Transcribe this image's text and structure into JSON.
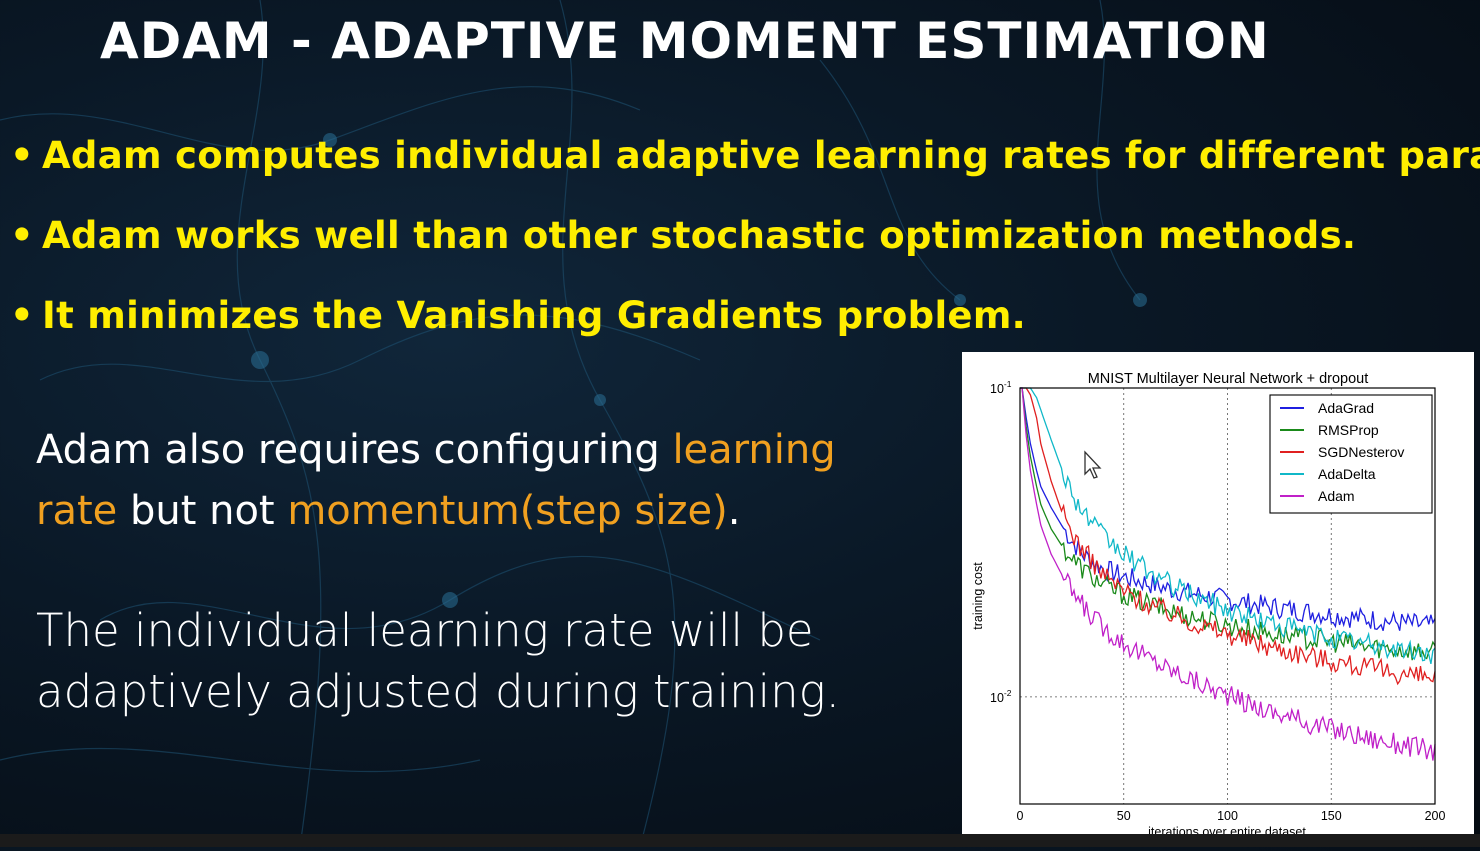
{
  "slide": {
    "title": "ADAM - ADAPTIVE MOMENT ESTIMATION",
    "bullets": [
      "Adam computes individual adaptive learning rates for different para",
      "Adam works well than other stochastic optimization methods.",
      "It minimizes the Vanishing Gradients problem."
    ],
    "bullet_glyph": "•",
    "paragraph1": {
      "t1": "Adam also requires configuring ",
      "h1": "learning rate",
      "t2": " but not ",
      "h2": "momentum(step size)",
      "t3": "."
    },
    "paragraph2": "The individual learning rate will be adaptively adjusted during training.",
    "colors": {
      "bullet_text": "#ffee00",
      "highlight": "#f0a020",
      "text": "#ffffff"
    }
  },
  "chart_data": {
    "type": "line",
    "title": "MNIST Multilayer Neural Network + dropout",
    "xlabel": "iterations over entire dataset",
    "ylabel": "training cost",
    "xlim": [
      0,
      200
    ],
    "ylim": [
      0.0045,
      0.1
    ],
    "yscale": "log",
    "x_ticks": [
      "0",
      "50",
      "100",
      "150",
      "200"
    ],
    "y_ticks": [
      {
        "base": "10",
        "exp": "-1"
      },
      {
        "base": "10",
        "exp": "-2"
      }
    ],
    "grid": true,
    "legend_position": "top-right",
    "x": [
      1,
      3,
      5,
      8,
      10,
      15,
      20,
      25,
      30,
      40,
      50,
      60,
      70,
      80,
      90,
      100,
      110,
      120,
      130,
      140,
      150,
      160,
      170,
      180,
      190,
      200
    ],
    "series": [
      {
        "name": "AdaGrad",
        "color": "#1f1fe0",
        "values": [
          0.1,
          0.08,
          0.066,
          0.054,
          0.048,
          0.041,
          0.036,
          0.032,
          0.029,
          0.026,
          0.0245,
          0.0235,
          0.0225,
          0.0218,
          0.0212,
          0.0206,
          0.0201,
          0.0196,
          0.0192,
          0.0188,
          0.0184,
          0.0181,
          0.0178,
          0.0175,
          0.0172,
          0.017
        ]
      },
      {
        "name": "RMSProp",
        "color": "#1a8a1a",
        "values": [
          0.1,
          0.075,
          0.06,
          0.048,
          0.042,
          0.035,
          0.031,
          0.028,
          0.026,
          0.023,
          0.0215,
          0.0202,
          0.0192,
          0.0184,
          0.0177,
          0.0171,
          0.0166,
          0.0161,
          0.0157,
          0.0154,
          0.0151,
          0.0148,
          0.0145,
          0.0143,
          0.0141,
          0.0139
        ]
      },
      {
        "name": "SGDNesterov",
        "color": "#e02020",
        "values": [
          0.1,
          0.1,
          0.095,
          0.08,
          0.066,
          0.05,
          0.04,
          0.034,
          0.03,
          0.025,
          0.022,
          0.0203,
          0.019,
          0.0178,
          0.0168,
          0.016,
          0.0153,
          0.0146,
          0.0141,
          0.0136,
          0.0131,
          0.0127,
          0.0123,
          0.012,
          0.0117,
          0.0115
        ]
      },
      {
        "name": "AdaDelta",
        "color": "#10b8c8",
        "values": [
          0.1,
          0.1,
          0.1,
          0.093,
          0.085,
          0.068,
          0.055,
          0.046,
          0.04,
          0.033,
          0.029,
          0.026,
          0.0236,
          0.0218,
          0.0204,
          0.0192,
          0.0182,
          0.0174,
          0.0167,
          0.0161,
          0.0156,
          0.0151,
          0.0147,
          0.0143,
          0.014,
          0.0137
        ]
      },
      {
        "name": "Adam",
        "color": "#c020c8",
        "values": [
          0.1,
          0.07,
          0.054,
          0.042,
          0.036,
          0.029,
          0.025,
          0.022,
          0.0198,
          0.0168,
          0.015,
          0.0136,
          0.0125,
          0.0116,
          0.0108,
          0.0101,
          0.0095,
          0.009,
          0.0086,
          0.0082,
          0.0079,
          0.0076,
          0.0073,
          0.0071,
          0.0069,
          0.0067
        ]
      }
    ]
  }
}
